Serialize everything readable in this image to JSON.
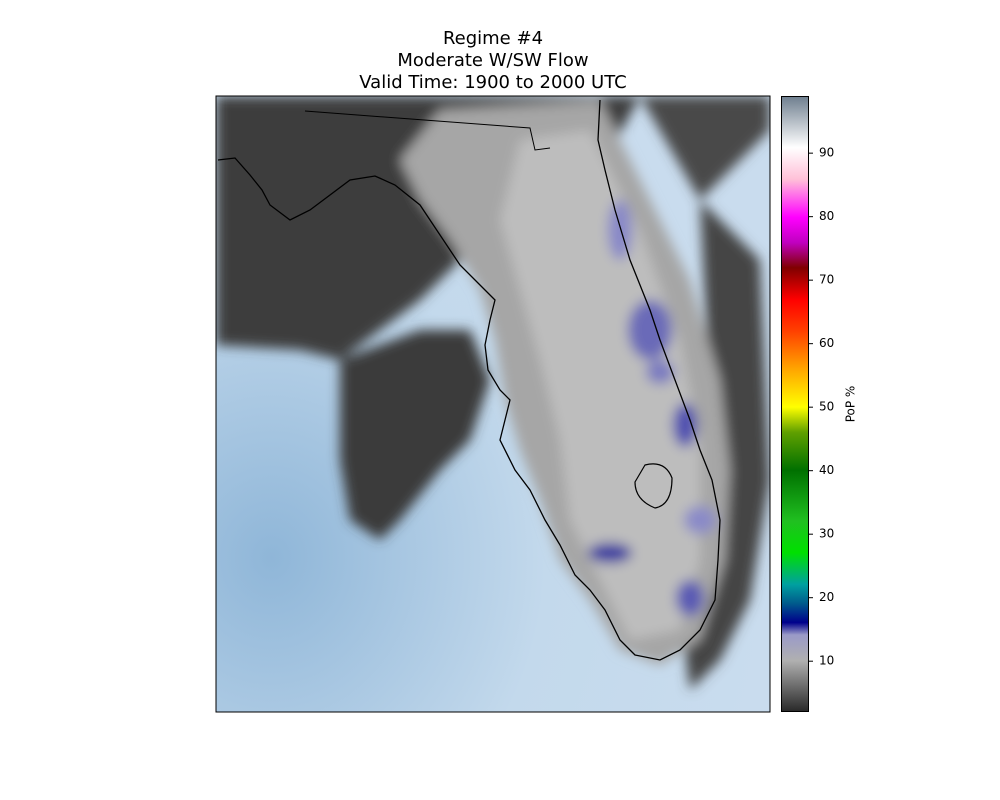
{
  "map": {
    "title": [
      "Regime #4",
      "Moderate W/SW Flow",
      "Valid Time: 1900 to 2000 UTC"
    ],
    "colorbar": {
      "label": "PoP %",
      "lim": [
        2,
        99
      ],
      "ticks": [
        10,
        20,
        30,
        40,
        50,
        60,
        70,
        80,
        90
      ]
    }
  }
}
